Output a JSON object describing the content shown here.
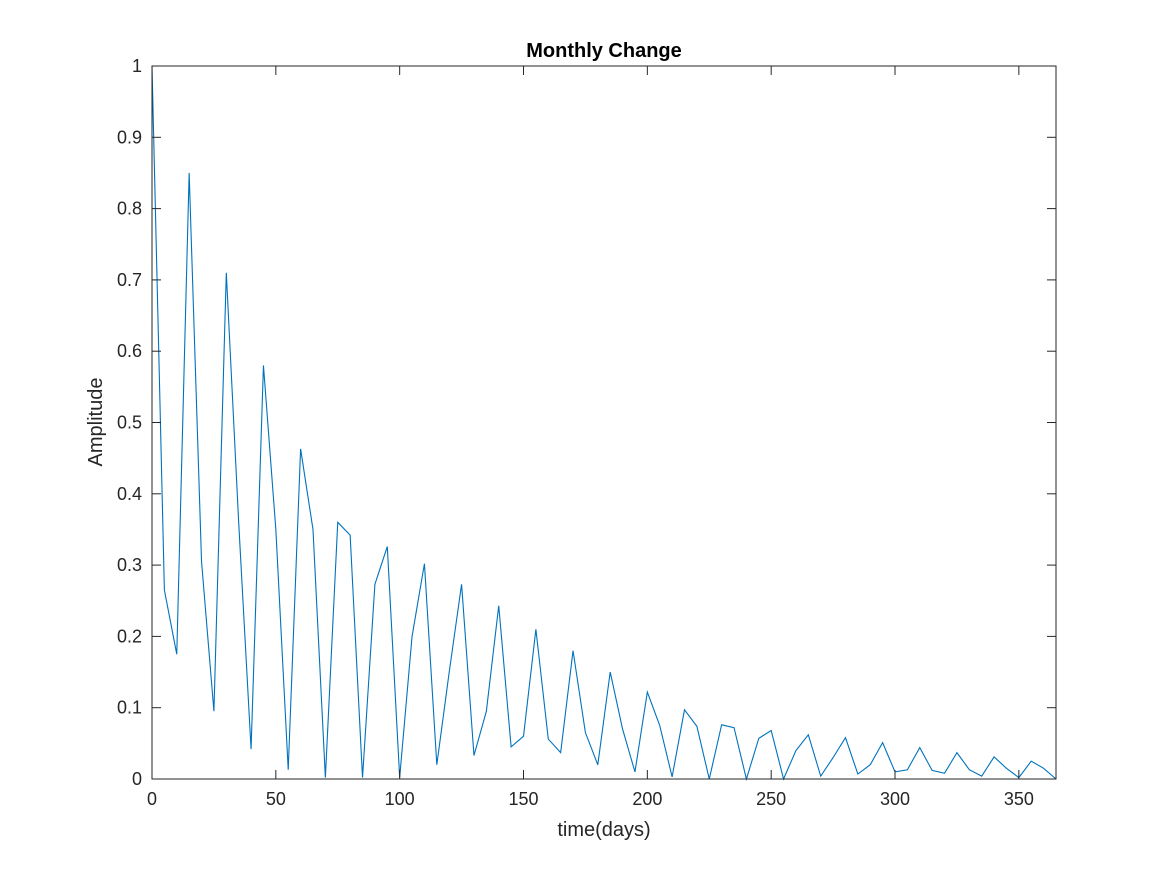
{
  "chart_data": {
    "type": "line",
    "title": "Monthly Change",
    "xlabel": "time(days)",
    "ylabel": "Amplitude",
    "xlim": [
      0,
      365
    ],
    "ylim": [
      0,
      1
    ],
    "x_ticks": [
      0,
      50,
      100,
      150,
      200,
      250,
      300,
      350
    ],
    "y_ticks": [
      0,
      0.1,
      0.2,
      0.3,
      0.4,
      0.5,
      0.6,
      0.7,
      0.8,
      0.9,
      1
    ],
    "x_tick_labels": [
      "0",
      "50",
      "100",
      "150",
      "200",
      "250",
      "300",
      "350"
    ],
    "y_tick_labels": [
      "0",
      "0.1",
      "0.2",
      "0.3",
      "0.4",
      "0.5",
      "0.6",
      "0.7",
      "0.8",
      "0.9",
      "1"
    ],
    "grid": false,
    "series_color": "#0072BD",
    "series": [
      {
        "x": [
          0,
          5,
          10,
          15,
          20,
          25,
          30,
          35,
          40,
          45,
          50,
          55,
          60,
          65,
          70,
          75,
          80,
          85,
          90,
          95,
          100,
          105,
          110,
          115,
          120,
          125,
          130,
          135,
          140,
          145,
          150,
          155,
          160,
          165,
          170,
          175,
          180,
          185,
          190,
          195,
          200,
          205,
          210,
          215,
          220,
          225,
          230,
          235,
          240,
          245,
          250,
          255,
          260,
          265,
          270,
          275,
          280,
          285,
          290,
          295,
          300,
          305,
          310,
          315,
          320,
          325,
          330,
          335,
          340,
          345,
          350,
          355,
          360,
          365
        ],
        "values": [
          1.0,
          0.265,
          0.175,
          0.85,
          0.305,
          0.095,
          0.71,
          0.36,
          0.042,
          0.58,
          0.35,
          0.013,
          0.463,
          0.35,
          0.002,
          0.36,
          0.342,
          0.002,
          0.273,
          0.326,
          0.002,
          0.2,
          0.302,
          0.02,
          0.15,
          0.273,
          0.033,
          0.095,
          0.243,
          0.045,
          0.06,
          0.21,
          0.056,
          0.037,
          0.18,
          0.065,
          0.02,
          0.15,
          0.07,
          0.01,
          0.122,
          0.075,
          0.003,
          0.097,
          0.074,
          0.0,
          0.076,
          0.072,
          0.0,
          0.057,
          0.068,
          0.0,
          0.04,
          0.062,
          0.004,
          0.03,
          0.058,
          0.007,
          0.02,
          0.051,
          0.01,
          0.013,
          0.044,
          0.012,
          0.008,
          0.037,
          0.013,
          0.004,
          0.031,
          0.015,
          0.002,
          0.025,
          0.015,
          0.0
        ]
      }
    ]
  }
}
